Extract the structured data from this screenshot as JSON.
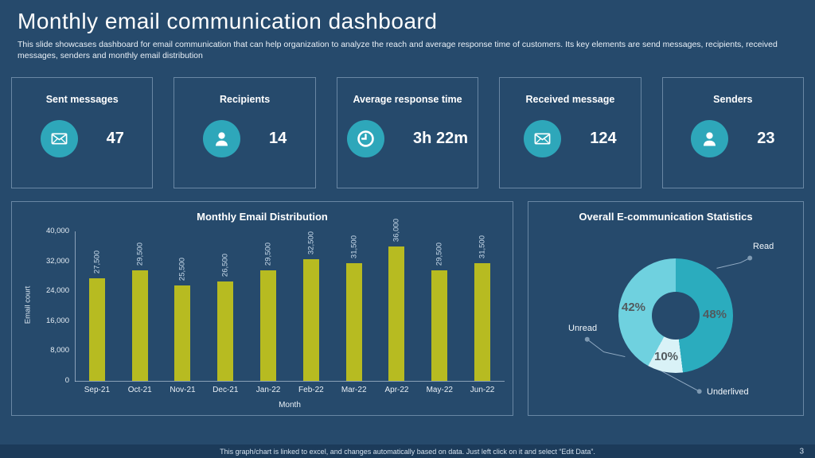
{
  "page": {
    "title": "Monthly email communication dashboard",
    "subtitle": "This slide showcases dashboard for email communication that can help organization to analyze the reach and average response time of customers. Its key elements are send messages, recipients, received messages, senders and monthly email distribution",
    "footer_note": "This graph/chart is linked to excel,  and changes automatically based on data. Just left click on it and select “Edit Data”.",
    "page_number": "3"
  },
  "colors": {
    "background": "#264A6C",
    "footer_strip": "#1C3B5A",
    "panel_border": "#A0BAD4",
    "accent_teal": "#2EA7BA",
    "bar_olive": "#B7BB21",
    "donut_read": "#2BACBE",
    "donut_unread": "#6FD1DF",
    "donut_underlived": "#D9F2F7",
    "dark_pct_label": "#525A5E"
  },
  "kpi_cards": [
    {
      "label": "Sent messages",
      "value": "47",
      "icon": "envelope-icon"
    },
    {
      "label": "Recipients",
      "value": "14",
      "icon": "person-icon"
    },
    {
      "label": "Average response time",
      "value": "3h 22m",
      "icon": "clock-icon"
    },
    {
      "label": "Received message",
      "value": "124",
      "icon": "envelope-icon"
    },
    {
      "label": "Senders",
      "value": "23",
      "icon": "person-icon"
    }
  ],
  "chart_data": [
    {
      "type": "bar",
      "title": "Monthly Email Distribution",
      "xlabel": "Month",
      "ylabel": "Email court",
      "categories": [
        "Sep-21",
        "Oct-21",
        "Nov-21",
        "Dec-21",
        "Jan-22",
        "Feb-22",
        "Mar-22",
        "Apr-22",
        "May-22",
        "Jun-22"
      ],
      "values": [
        27500,
        29500,
        25500,
        26500,
        29500,
        32500,
        31500,
        36000,
        29500,
        31500
      ],
      "value_labels": [
        "27,500",
        "29,500",
        "25,500",
        "26,500",
        "29,500",
        "32,500",
        "31,500",
        "36,000",
        "29,500",
        "31,500"
      ],
      "ylim": [
        0,
        40000
      ],
      "y_ticks": [
        0,
        8000,
        16000,
        24000,
        32000,
        40000
      ],
      "y_tick_labels": [
        "0",
        "8,000",
        "16,000",
        "24,000",
        "32,000",
        "40,000"
      ],
      "grid": false,
      "legend": "none",
      "bar_color": "#B7BB21"
    },
    {
      "type": "pie",
      "donut": true,
      "title": "Overall E-communication Statistics",
      "start_angle_deg": 0,
      "direction": "clockwise",
      "slices": [
        {
          "label": "Read",
          "value": 48,
          "pct_label": "48%",
          "color": "#2BACBE"
        },
        {
          "label": "Underlived",
          "value": 10,
          "pct_label": "10%",
          "color": "#D9F2F7"
        },
        {
          "label": "Unread",
          "value": 42,
          "pct_label": "42%",
          "color": "#6FD1DF"
        }
      ]
    }
  ]
}
